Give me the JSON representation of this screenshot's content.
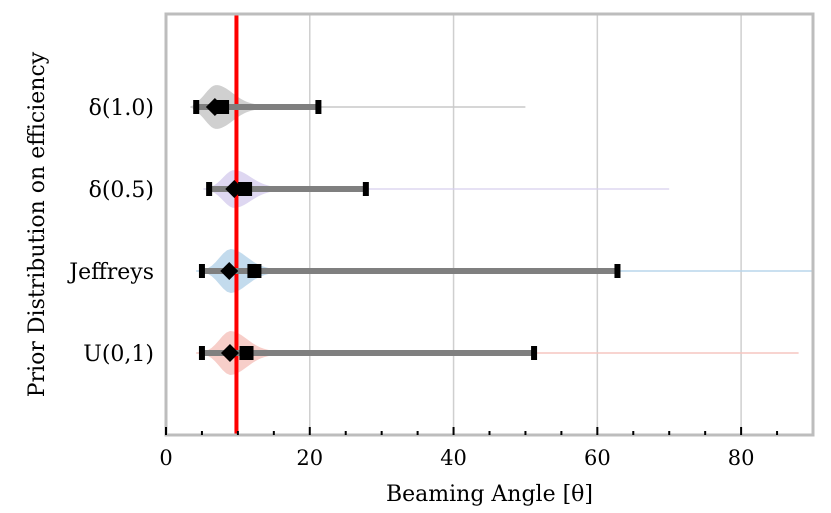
{
  "chart_data": {
    "type": "violin",
    "title": "",
    "xlabel": "Beaming Angle [θ]",
    "ylabel": "Prior Distribution on efficiency",
    "xlim": [
      0,
      90
    ],
    "xticks": [
      0,
      20,
      40,
      60,
      80
    ],
    "xtick_labels": [
      "0",
      "20",
      "40",
      "60",
      "80"
    ],
    "minor_xticks": [
      5,
      10,
      15,
      25,
      30,
      35,
      45,
      50,
      55,
      65,
      70,
      75,
      85
    ],
    "grid": true,
    "reference_line": {
      "x": 9.8,
      "color": "#ff0000"
    },
    "categories": [
      "δ(1.0)",
      "δ(0.5)",
      "Jeffreys",
      "U(0,1)"
    ],
    "series": [
      {
        "name": "δ(1.0)",
        "color": "#c8c8c8",
        "low": 4.2,
        "high": 21.2,
        "median": 7.8,
        "mode": 6.8,
        "tail_max": 50,
        "peak": 7.0,
        "halfwidth": 22
      },
      {
        "name": "δ(0.5)",
        "color": "#d8d0ee",
        "low": 6.0,
        "high": 27.8,
        "median": 11.0,
        "mode": 9.5,
        "tail_max": 70,
        "peak": 9.5,
        "halfwidth": 19
      },
      {
        "name": "Jeffreys",
        "color": "#b9d5ea",
        "low": 5.0,
        "high": 62.8,
        "median": 12.3,
        "mode": 8.8,
        "tail_max": 90,
        "peak": 9.0,
        "halfwidth": 22
      },
      {
        "name": "U(0,1)",
        "color": "#f6c6c0",
        "low": 5.0,
        "high": 51.2,
        "median": 11.2,
        "mode": 8.9,
        "tail_max": 88,
        "peak": 9.0,
        "halfwidth": 22
      }
    ]
  }
}
